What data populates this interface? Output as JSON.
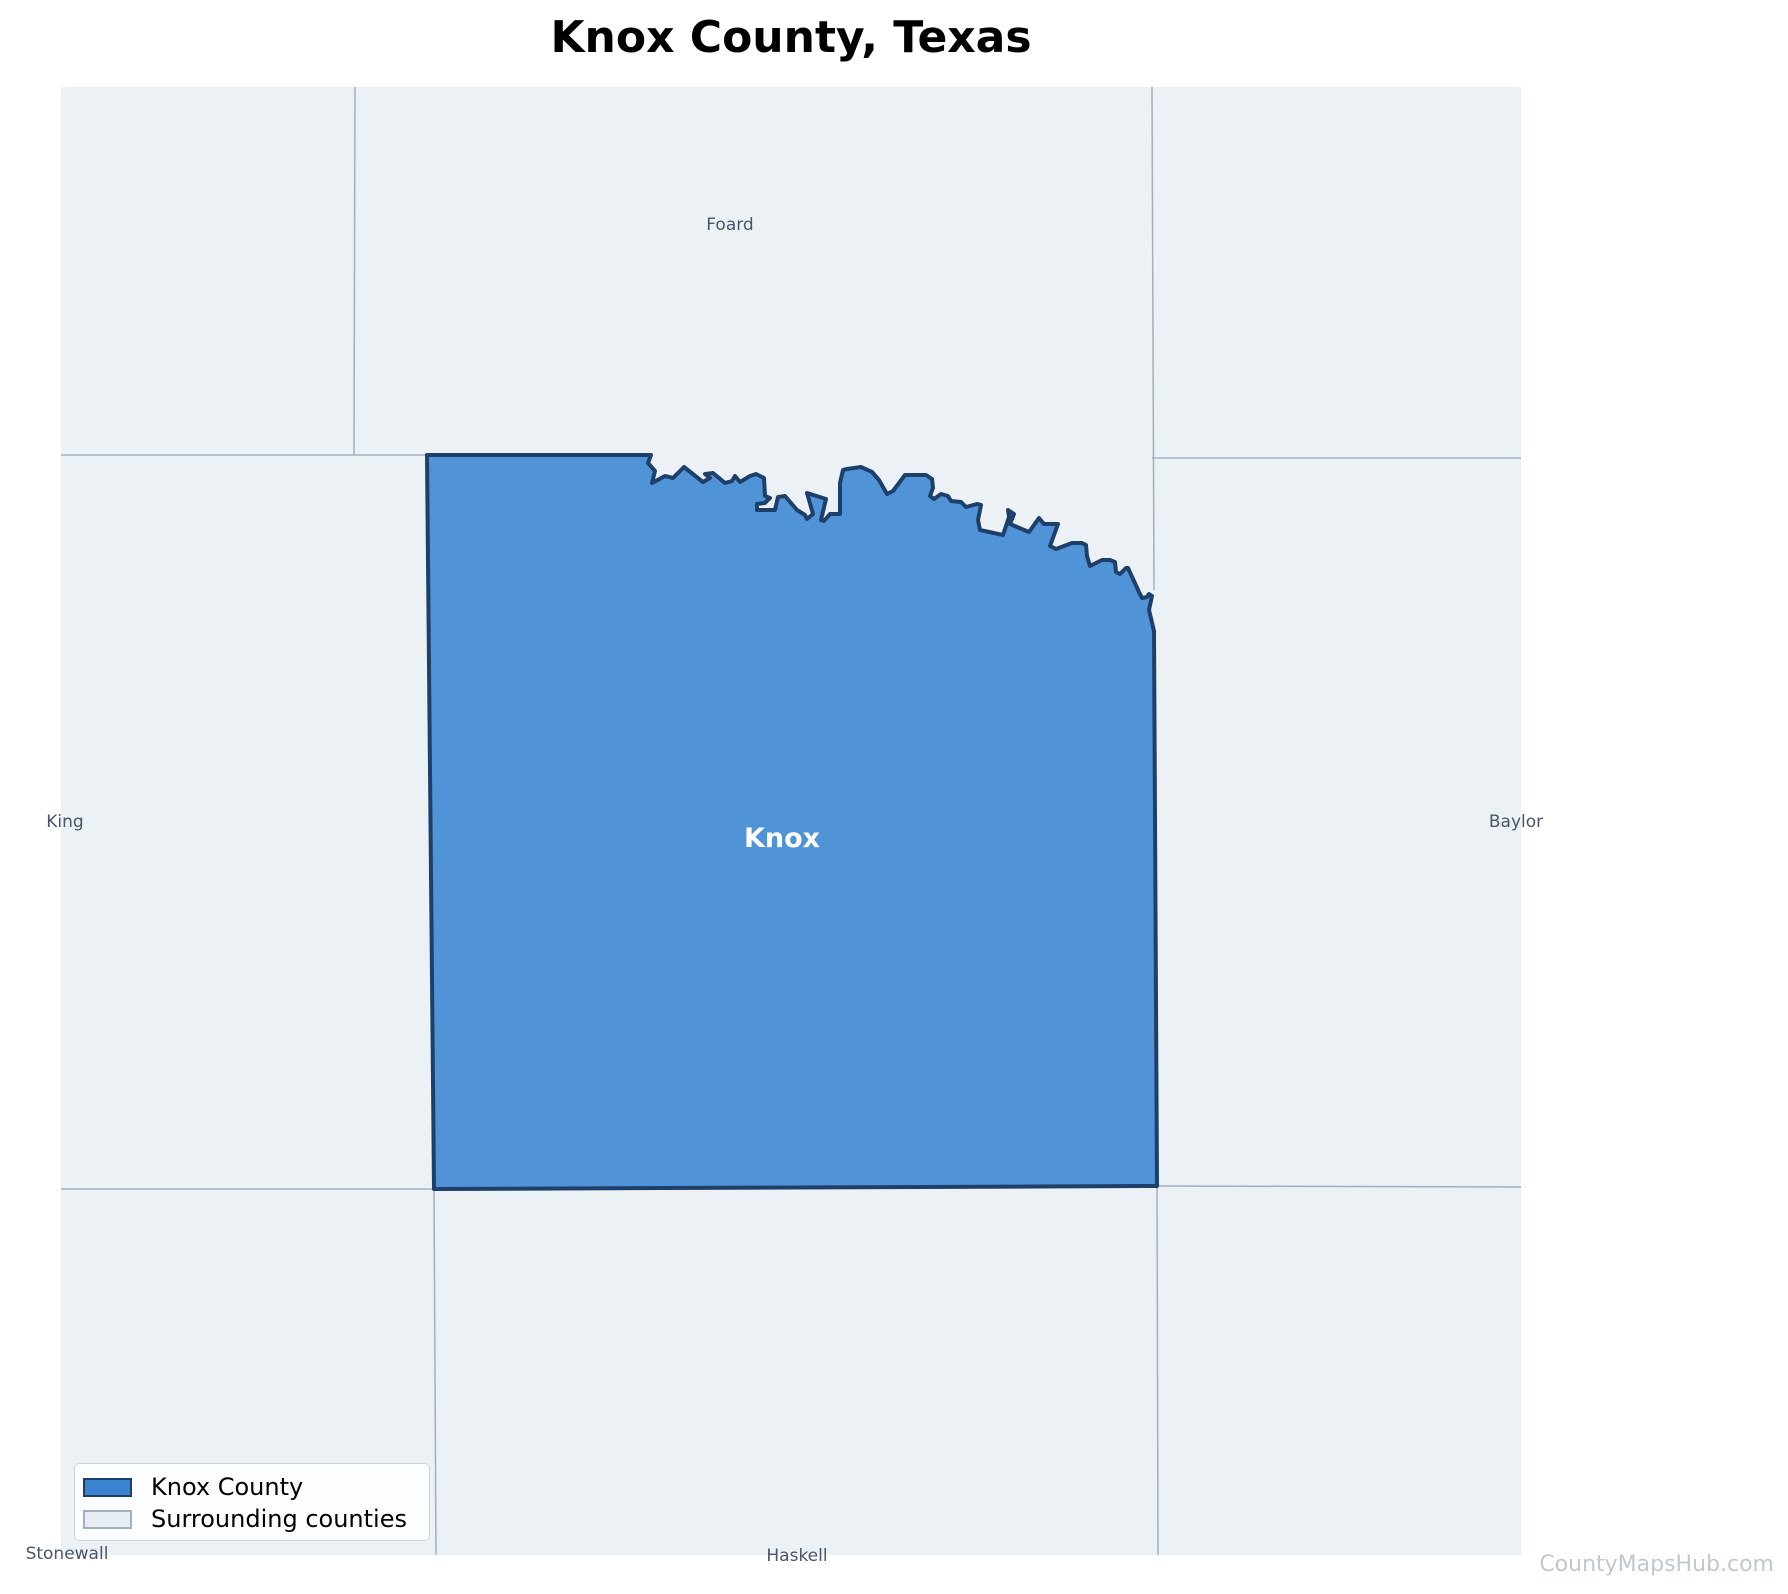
{
  "title": "Knox County, Texas",
  "focus_county": {
    "label": "Knox",
    "fill": "#5093d6",
    "stroke": "#1f3f6b"
  },
  "surrounding": {
    "fill": "#ecf1f6",
    "stroke": "#a3afc0",
    "labels": {
      "north": "Foard",
      "west": "King",
      "east": "Baylor",
      "south": "Haskell",
      "southwest": "Stonewall"
    }
  },
  "legend": {
    "focus_label": "Knox County",
    "surrounding_label": "Surrounding counties",
    "focus_swatch_fill": "#3a83cf",
    "focus_swatch_stroke": "#1f3f6b",
    "surrounding_swatch_fill": "#e6edf5",
    "surrounding_swatch_stroke": "#a3afc0"
  },
  "watermark": "CountyMapsHub.com"
}
